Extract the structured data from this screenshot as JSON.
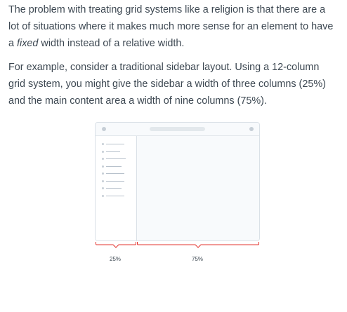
{
  "paragraphs": {
    "p1_before": "The problem with treating grid systems like a religion is that there are a lot of situations where it makes much more sense for an element to have a ",
    "p1_em": "fixed",
    "p1_after": " width instead of a relative width.",
    "p2": "For example, consider a traditional sidebar layout. Using a 12-column grid system, you might give the sidebar a width of three columns (25%) and the main content area a width of nine columns (75%)."
  },
  "illustration": {
    "sidebar_label": "25%",
    "content_label": "75%",
    "sidebar_item_count": 8,
    "colors": {
      "border": "#dae1e7",
      "sidebar_bg": "#ffffff",
      "content_bg": "#f8fafc",
      "brace": "#e3342f",
      "text": "#3d4852"
    }
  }
}
